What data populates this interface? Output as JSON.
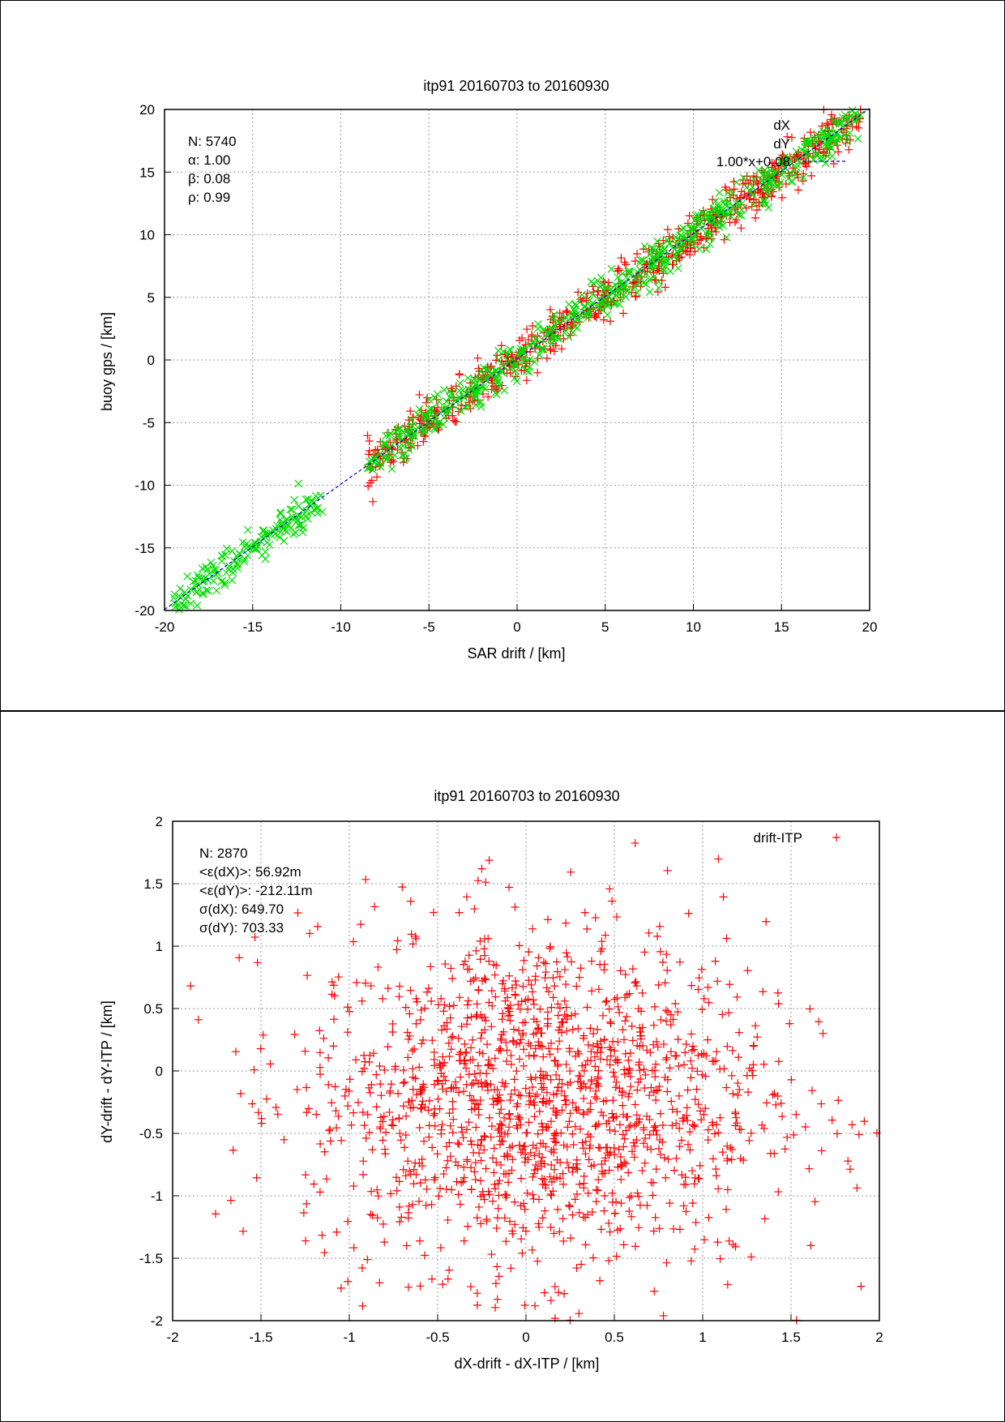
{
  "charts": [
    {
      "type": "scatter",
      "title": "itp91 20160703 to 20160930",
      "xlabel": "SAR drift / [km]",
      "ylabel": "buoy gps / [km]",
      "xlim": [
        -20,
        20
      ],
      "ylim": [
        -20,
        20
      ],
      "xticks": [
        "-20",
        "-15",
        "-10",
        "-5",
        "0",
        "5",
        "10",
        "15",
        "20"
      ],
      "yticks": [
        "-20",
        "-15",
        "-10",
        "-5",
        "0",
        "5",
        "10",
        "15",
        "20"
      ],
      "grid": true,
      "stats": [
        "N: 5740",
        "α: 1.00",
        "β: 0.08",
        "ρ: 0.99"
      ],
      "legend": [
        "dX",
        "dY",
        "1.00*x+0.08"
      ],
      "legend_position": "top-right",
      "series": [
        {
          "name": "dX",
          "marker": "+",
          "color": "#ff0000",
          "pattern": "linear scatter near y = x",
          "x_range": [
            -8.5,
            19.5
          ],
          "scatter_sd": 0.9,
          "n_drawn": 700
        },
        {
          "name": "dY",
          "marker": "x",
          "color": "#00dd00",
          "pattern": "linear scatter near y = x",
          "x_range": [
            -19.5,
            19.5
          ],
          "scatter_sd": 0.8,
          "n_drawn": 800
        },
        {
          "name": "1.00*x+0.08",
          "type": "line",
          "color": "#0000cc",
          "dash": "dashed",
          "slope": 1.0,
          "intercept": 0.08
        }
      ]
    },
    {
      "type": "scatter",
      "title": "itp91 20160703 to 20160930",
      "xlabel": "dX-drift - dX-ITP / [km]",
      "ylabel": "dY-drift - dY-ITP / [km]",
      "xlim": [
        -2,
        2
      ],
      "ylim": [
        -2,
        2
      ],
      "xticks": [
        "-2",
        "-1.5",
        "-1",
        "-0.5",
        "0",
        "0.5",
        "1",
        "1.5",
        "2"
      ],
      "yticks": [
        "-2",
        "-1.5",
        "-1",
        "-0.5",
        "0",
        "0.5",
        "1",
        "1.5",
        "2"
      ],
      "grid": true,
      "stats": [
        "N: 2870",
        "<ε(dX)>:  56.92m",
        "<ε(dY)>: -212.11m",
        "σ(dX): 649.70",
        "σ(dY):  703.33"
      ],
      "legend": [
        "drift-ITP"
      ],
      "legend_position": "top-right",
      "series": [
        {
          "name": "drift-ITP",
          "marker": "+",
          "color": "#ff0000",
          "pattern": "2-D cloud",
          "mean": [
            0.057,
            -0.212
          ],
          "sd": [
            0.65,
            0.7
          ],
          "n_drawn": 1500
        }
      ]
    }
  ],
  "colors": {
    "grid": "#999999",
    "frame": "#000000"
  }
}
